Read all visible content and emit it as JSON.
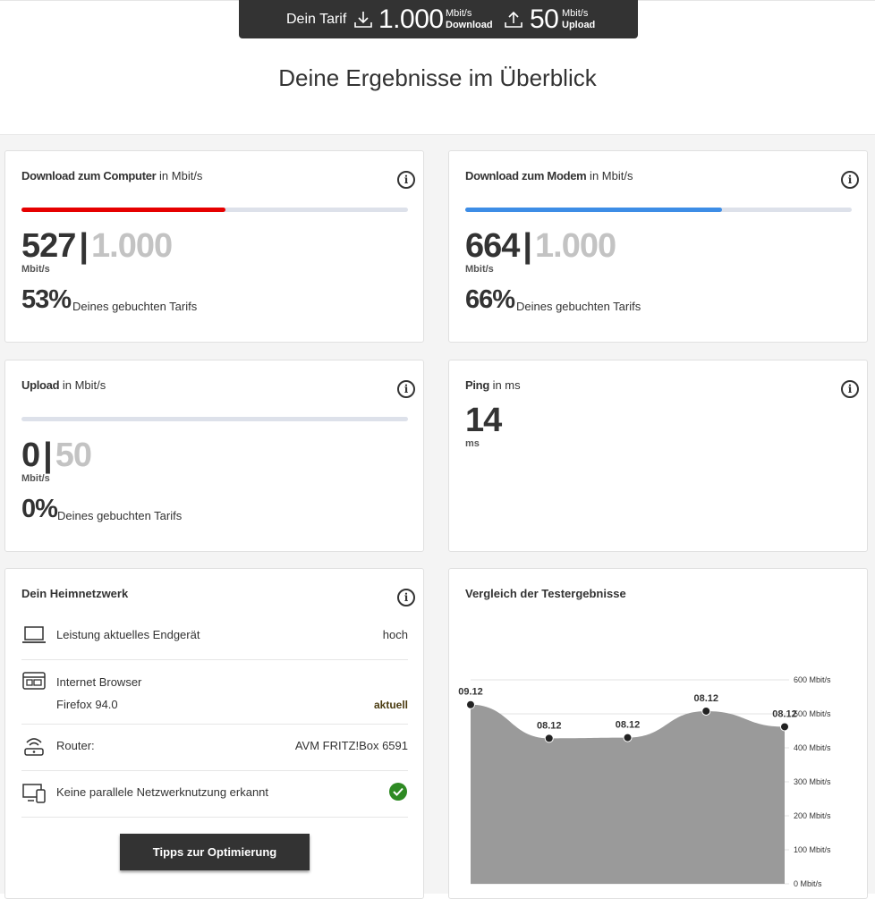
{
  "header": {
    "tarif_label": "Dein Tarif",
    "download_value": "1.000",
    "download_unit": "Mbit/s",
    "download_label": "Download",
    "upload_value": "50",
    "upload_unit": "Mbit/s",
    "upload_label": "Upload",
    "headline": "Deine Ergebnisse im Überblick"
  },
  "colors": {
    "download_computer_bar": "#e60000",
    "download_modem_bar": "#3d8de6",
    "bar_background": "#dde1ea",
    "check_green": "#2e8a23",
    "chart_fill": "#9a9a9a"
  },
  "cards": {
    "download_computer": {
      "title_bold": "Download zum Computer",
      "title_unit": " in Mbit/s",
      "value": "527",
      "separator": "|",
      "max": "1.000",
      "unit": "Mbit/s",
      "percent": "53%",
      "percent_text": "Deines gebuchten Tarifs",
      "progress": 0.527
    },
    "download_modem": {
      "title_bold": "Download zum Modem",
      "title_unit": " in Mbit/s",
      "value": "664",
      "separator": "|",
      "max": "1.000",
      "unit": "Mbit/s",
      "percent": "66%",
      "percent_text": "Deines gebuchten Tarifs",
      "progress": 0.664
    },
    "upload": {
      "title_bold": "Upload",
      "title_unit": " in Mbit/s",
      "value": "0",
      "separator": "|",
      "max": "50",
      "unit": "Mbit/s",
      "percent": "0%",
      "percent_text": "Deines gebuchten Tarifs",
      "progress": 0
    },
    "ping": {
      "title_bold": "Ping",
      "title_unit": " in ms",
      "value": "14",
      "unit": "ms"
    },
    "heimnetz": {
      "title": "Dein Heimnetzwerk",
      "rows": [
        {
          "icon": "laptop-icon",
          "label": "Leistung aktuelles Endgerät",
          "value": "hoch"
        },
        {
          "icon": "browser-icon",
          "label": "Internet Browser",
          "sublabel": "Firefox 94.0",
          "value": "aktuell"
        },
        {
          "icon": "router-icon",
          "label": "Router:",
          "value": "AVM FRITZ!Box 6591"
        },
        {
          "icon": "devices-icon",
          "label": "Keine parallele Netzwerknutzung erkannt",
          "value_icon": "check-icon"
        }
      ],
      "button_label": "Tipps zur Optimierung"
    },
    "vergleich": {
      "title": "Vergleich der Testergebnisse"
    }
  },
  "chart_data": {
    "type": "area",
    "title": "Vergleich der Testergebnisse",
    "x": [
      "09.12",
      "08.12",
      "08.12",
      "08.12",
      "08.12"
    ],
    "values": [
      527,
      428,
      430,
      508,
      462
    ],
    "ylim": [
      0,
      600
    ],
    "yticks": [
      "0 Mbit/s",
      "100 Mbit/s",
      "200 Mbit/s",
      "300 Mbit/s",
      "400 Mbit/s",
      "500 Mbit/s",
      "600 Mbit/s"
    ],
    "grid": false
  }
}
